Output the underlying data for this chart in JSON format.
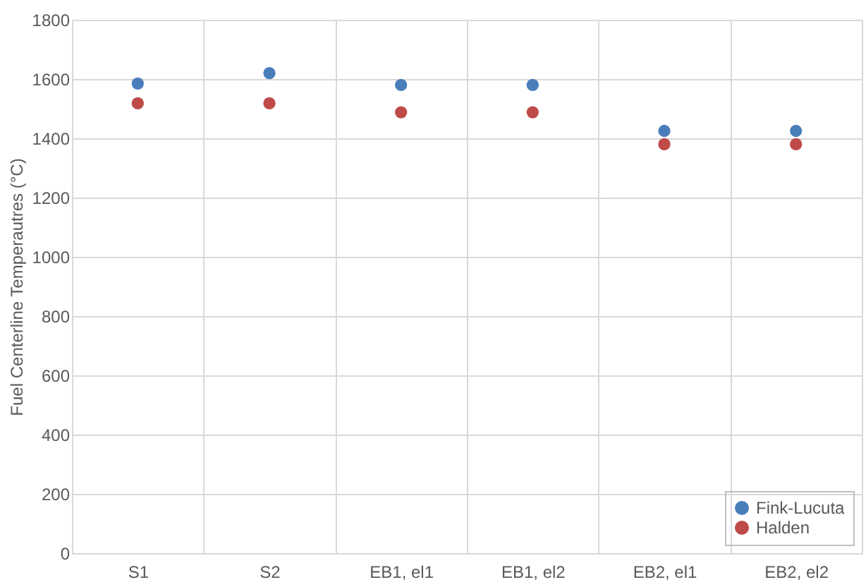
{
  "chart_data": {
    "type": "scatter",
    "ylabel": "Fuel Centerline Temperautres (°C)",
    "categories": [
      "S1",
      "S2",
      "EB1, el1",
      "EB1, el2",
      "EB2, el1",
      "EB2, el2"
    ],
    "series": [
      {
        "name": "Fink-Lucuta",
        "color": "#4a7ebb",
        "values": [
          1585,
          1620,
          1580,
          1580,
          1425,
          1425
        ]
      },
      {
        "name": "Halden",
        "color": "#be4b48",
        "values": [
          1518,
          1518,
          1488,
          1488,
          1380,
          1380
        ]
      }
    ],
    "ylim": [
      0,
      1800
    ],
    "yticks": [
      0,
      200,
      400,
      600,
      800,
      1000,
      1200,
      1400,
      1600,
      1800
    ],
    "grid": true,
    "legend": "bottom right",
    "marker": "circle"
  }
}
